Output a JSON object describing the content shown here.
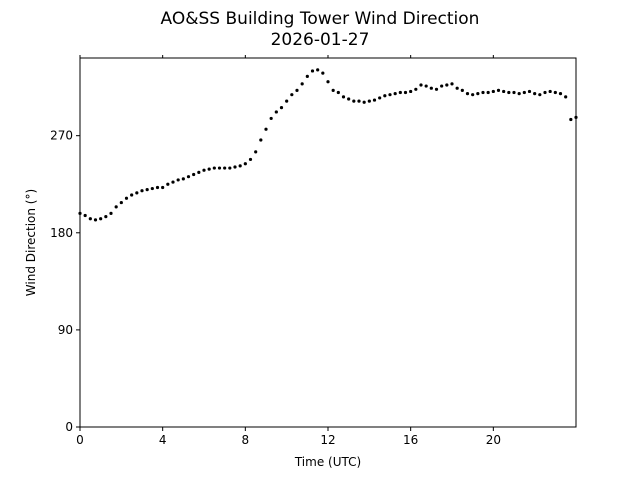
{
  "chart_data": {
    "type": "scatter",
    "title": "AO&SS Building Tower Wind Direction",
    "subtitle": "2026-01-27",
    "xlabel": "Time (UTC)",
    "ylabel": "Wind Direction (°)",
    "xlim": [
      0,
      24
    ],
    "ylim": [
      0,
      342
    ],
    "xticks": [
      0,
      4,
      8,
      12,
      16,
      20
    ],
    "yticks": [
      0,
      90,
      180,
      270
    ],
    "grid": false,
    "marker_color": "#000000",
    "series": [
      {
        "x": [
          0.0,
          0.25,
          0.5,
          0.75,
          1.0,
          1.25,
          1.5,
          1.75,
          2.0,
          2.25,
          2.5,
          2.75,
          3.0,
          3.25,
          3.5,
          3.75,
          4.0,
          4.25,
          4.5,
          4.75,
          5.0,
          5.25,
          5.5,
          5.75,
          6.0,
          6.25,
          6.5,
          6.75,
          7.0,
          7.25,
          7.5,
          7.75,
          8.0,
          8.25,
          8.5,
          8.75,
          9.0,
          9.25,
          9.5,
          9.75,
          10.0,
          10.25,
          10.5,
          10.75,
          11.0,
          11.25,
          11.5,
          11.75,
          12.0,
          12.25,
          12.5,
          12.75,
          13.0,
          13.25,
          13.5,
          13.75,
          14.0,
          14.25,
          14.5,
          14.75,
          15.0,
          15.25,
          15.5,
          15.75,
          16.0,
          16.25,
          16.5,
          16.75,
          17.0,
          17.25,
          17.5,
          17.75,
          18.0,
          18.25,
          18.5,
          18.75,
          19.0,
          19.25,
          19.5,
          19.75,
          20.0,
          20.25,
          20.5,
          20.75,
          21.0,
          21.25,
          21.5,
          21.75,
          22.0,
          22.25,
          22.5,
          22.75,
          23.0,
          23.25,
          23.5,
          23.75,
          24.0
        ],
        "y": [
          198,
          196,
          193,
          192,
          193,
          195,
          198,
          204,
          208,
          212,
          215,
          217,
          219,
          220,
          221,
          222,
          222,
          225,
          227,
          229,
          230,
          232,
          234,
          236,
          238,
          239,
          240,
          240,
          240,
          240,
          241,
          242,
          244,
          248,
          255,
          266,
          276,
          286,
          292,
          296,
          302,
          308,
          312,
          318,
          325,
          330,
          331,
          328,
          320,
          312,
          310,
          306,
          304,
          302,
          302,
          301,
          302,
          303,
          305,
          307,
          308,
          309,
          310,
          310,
          311,
          313,
          317,
          316,
          314,
          313,
          316,
          317,
          318,
          314,
          312,
          309,
          308,
          309,
          310,
          310,
          311,
          312,
          311,
          310,
          310,
          309,
          310,
          311,
          309,
          308,
          310,
          311,
          310,
          309,
          306,
          285,
          287
        ]
      }
    ]
  }
}
